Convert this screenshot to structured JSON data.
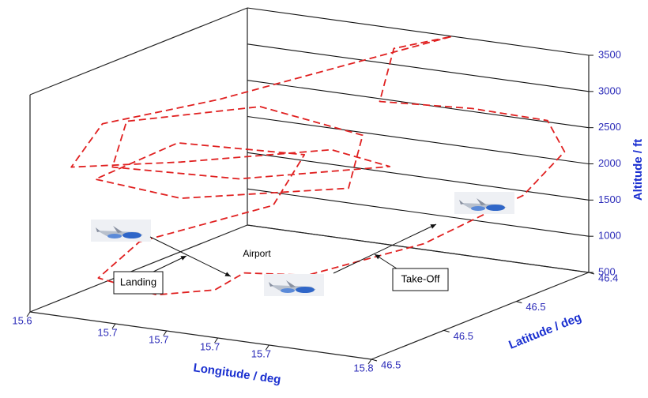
{
  "chart_data": {
    "type": "line3d",
    "xlabel": "Longitude / deg",
    "ylabel": "Latitude / deg",
    "zlabel": "Altitude / ft",
    "xlim": [
      15.6,
      15.8
    ],
    "xticks": [
      15.6,
      {
        "value": 15.65,
        "label": "15.7"
      },
      {
        "value": 15.68,
        "label": "15.7"
      },
      {
        "value": 15.71,
        "label": "15.7"
      },
      {
        "value": 15.74,
        "label": "15.7"
      },
      15.8
    ],
    "ylim": [
      46.52,
      46.43
    ],
    "yticks": [
      {
        "value": 46.52,
        "label": "46.5"
      },
      {
        "value": 46.49,
        "label": "46.5"
      },
      {
        "value": 46.46,
        "label": "46.5"
      },
      {
        "value": 46.43,
        "label": "46.4"
      }
    ],
    "zlim": [
      500,
      3500
    ],
    "zticks": [
      500,
      1000,
      1500,
      2000,
      2500,
      3000,
      3500
    ],
    "grid": true,
    "series": [
      {
        "color": "#e02020",
        "x": [
          15.69,
          15.72,
          15.76,
          15.79,
          15.8,
          15.79,
          15.76,
          15.72,
          15.7,
          15.72,
          15.68,
          15.64,
          15.6,
          15.61,
          15.66,
          15.72,
          15.74,
          15.68,
          15.62,
          15.6,
          15.65,
          15.71,
          15.73,
          15.66,
          15.61,
          15.63,
          15.69,
          15.7,
          15.65,
          15.64,
          15.66,
          15.68,
          15.69
        ],
        "y": [
          46.495,
          46.49,
          46.47,
          46.45,
          46.44,
          46.44,
          46.45,
          46.46,
          46.44,
          46.43,
          46.45,
          46.47,
          46.49,
          46.51,
          46.5,
          46.48,
          46.47,
          46.49,
          46.5,
          46.48,
          46.46,
          46.46,
          46.48,
          46.5,
          46.5,
          46.48,
          46.47,
          46.49,
          46.51,
          46.52,
          46.51,
          46.5,
          46.495
        ],
        "z": [
          1000,
          1000,
          1300,
          1800,
          2300,
          2700,
          2900,
          3000,
          3400,
          3500,
          3200,
          2900,
          2700,
          2400,
          2500,
          2600,
          2300,
          2200,
          2300,
          2600,
          2700,
          2500,
          2100,
          2000,
          2100,
          2400,
          2300,
          1900,
          1500,
          1100,
          800,
          800,
          1000
        ]
      }
    ],
    "annotations": [
      "Landing",
      "Take-Off",
      "Airport"
    ]
  }
}
